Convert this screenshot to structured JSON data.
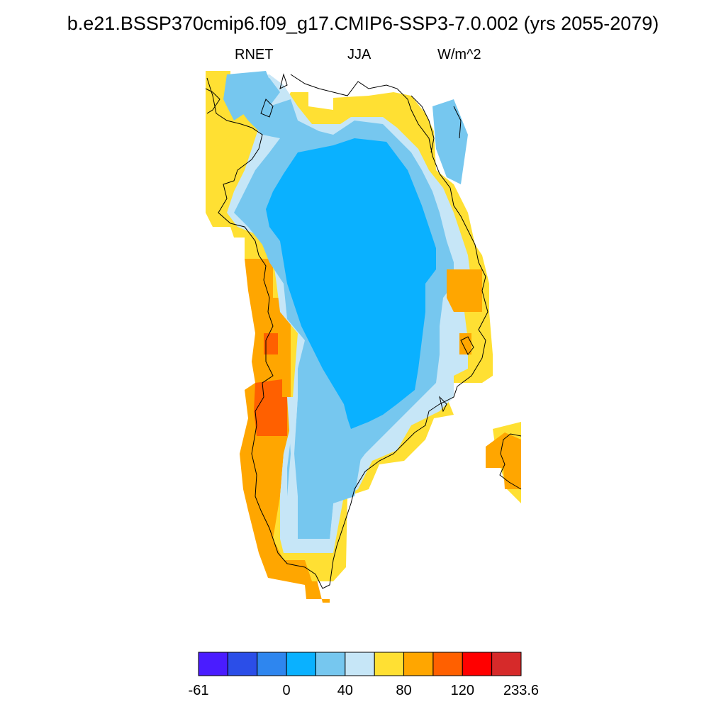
{
  "title": "b.e21.BSSP370cmip6.f09_g17.CMIP6-SSP3-7.0.002 (yrs 2055-2079)",
  "left_string": "RNET",
  "center_string": "JJA",
  "right_string": "W/m^2",
  "colorbar": {
    "colors": [
      "#4a1cff",
      "#2b4ee8",
      "#2e86ef",
      "#0ab1ff",
      "#76c7ef",
      "#c6e6f7",
      "#ffe033",
      "#ffa600",
      "#ff6000",
      "#ff0000",
      "#d62a2a"
    ],
    "labels": [
      {
        "text": "-61",
        "boundary": 0
      },
      {
        "text": "0",
        "boundary": 3
      },
      {
        "text": "40",
        "boundary": 5
      },
      {
        "text": "80",
        "boundary": 7
      },
      {
        "text": "120",
        "boundary": 9
      },
      {
        "text": "233.6",
        "boundary": 11
      }
    ]
  },
  "legend_colors": {
    "ice_interior": "#0ab1ff",
    "ice_margin": "#76c7ef",
    "ice_edge": "#c6e6f7",
    "coast_low": "#ffe033",
    "coast_mid": "#ffa600",
    "coast_high": "#ff6000"
  }
}
